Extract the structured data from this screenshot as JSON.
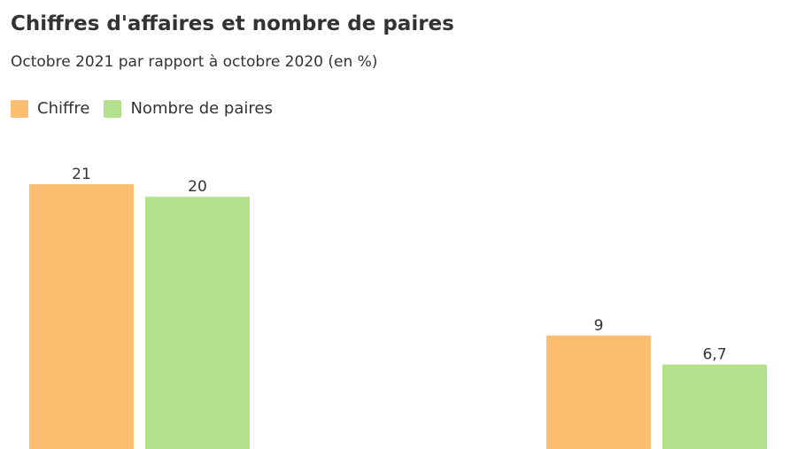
{
  "chart_data": {
    "type": "bar",
    "title": "Chiffres d'affaires et nombre de paires",
    "subtitle": "Octobre 2021 par rapport à octobre 2020 (en %)",
    "categories": [
      "",
      ""
    ],
    "series": [
      {
        "name": "Chiffre",
        "color": "#fdbe72",
        "values": [
          21,
          9
        ],
        "labels": [
          "21",
          "9"
        ]
      },
      {
        "name": "Nombre de paires",
        "color": "#b3e08a",
        "values": [
          20,
          6.7
        ],
        "labels": [
          "20",
          "6,7"
        ]
      }
    ],
    "ylim": [
      0,
      21
    ],
    "grid": false,
    "legend_position": "top-left"
  }
}
